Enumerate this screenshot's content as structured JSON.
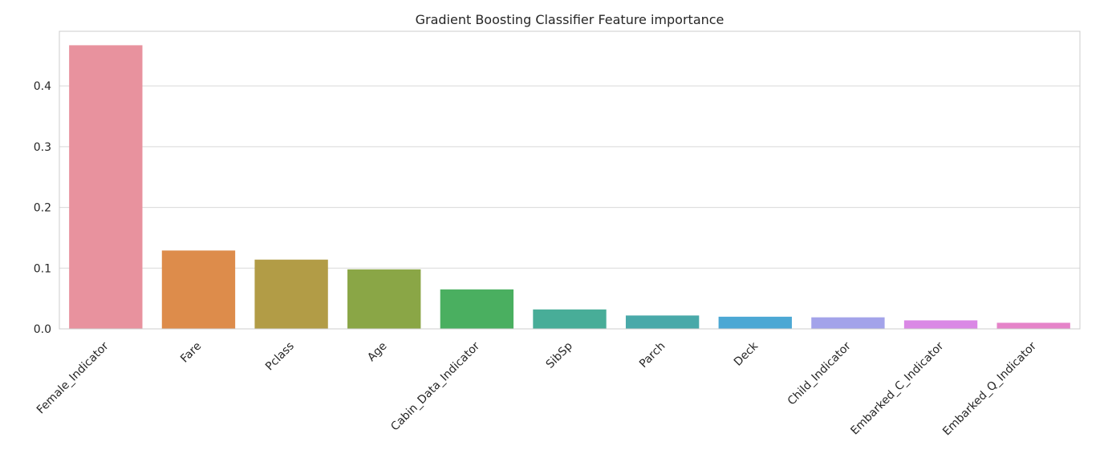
{
  "chart_data": {
    "type": "bar",
    "title": "Gradient Boosting Classifier Feature importance",
    "xlabel": "",
    "ylabel": "",
    "categories": [
      "Female_Indicator",
      "Fare",
      "Pclass",
      "Age",
      "Cabin_Data_Indicator",
      "SibSp",
      "Parch",
      "Deck",
      "Child_Indicator",
      "Embarked_C_Indicator",
      "Embarked_Q_Indicator"
    ],
    "values": [
      0.467,
      0.129,
      0.114,
      0.098,
      0.065,
      0.032,
      0.022,
      0.02,
      0.019,
      0.014,
      0.01
    ],
    "colors": [
      "#e8929e",
      "#dd8c4b",
      "#b29c46",
      "#8aa646",
      "#4aaf60",
      "#48ad98",
      "#49a9a9",
      "#4ca8d4",
      "#a3a3ea",
      "#da88e5",
      "#e584c9"
    ],
    "ylim": [
      0,
      0.49
    ],
    "yticks": [
      0.0,
      0.1,
      0.2,
      0.3,
      0.4
    ],
    "ytick_labels": [
      "0.0",
      "0.1",
      "0.2",
      "0.3",
      "0.4"
    ],
    "grid": "horizontal",
    "legend": "none"
  }
}
